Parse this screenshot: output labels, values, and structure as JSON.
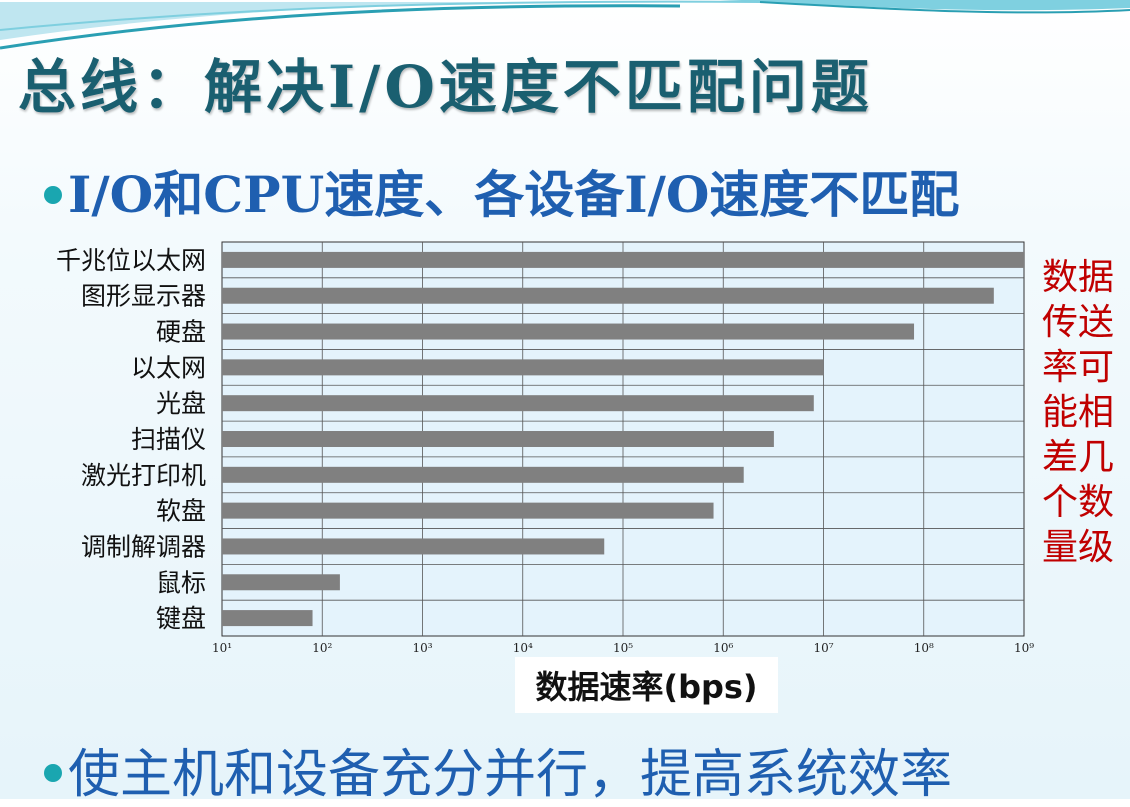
{
  "slide": {
    "title": "总线：解决I/O速度不匹配问题",
    "bullet1": "I/O和CPU速度、各设备I/O速度不匹配",
    "bullet2": "使主机和设备充分并行，提高系统效率",
    "side_note": "数据传送率可能相差几个数量级"
  },
  "colors": {
    "title": "#1a5f70",
    "bullet_text": "#1f5fb0",
    "bullet_dot": "#1aa6b0",
    "side_note": "#c00000",
    "bar": "#808080",
    "plot_bg": "#e4f3fc"
  },
  "chart_data": {
    "type": "bar",
    "orientation": "horizontal",
    "x_scale": "log",
    "xlabel": "数据速率(bps)",
    "xlim": [
      10,
      1000000000
    ],
    "x_ticks": [
      10,
      100,
      1000,
      10000,
      100000,
      1000000,
      10000000,
      100000000,
      1000000000
    ],
    "x_tick_labels": [
      "10¹",
      "10²",
      "10³",
      "10⁴",
      "10⁵",
      "10⁶",
      "10⁷",
      "10⁸",
      "10⁹"
    ],
    "grid": true,
    "categories": [
      "千兆位以太网",
      "图形显示器",
      "硬盘",
      "以太网",
      "光盘",
      "扫描仪",
      "激光打印机",
      "软盘",
      "调制解调器",
      "鼠标",
      "键盘"
    ],
    "values": [
      1000000000,
      500000000,
      80000000,
      10000000,
      8000000,
      3200000,
      1600000,
      800000,
      65000,
      150,
      80
    ]
  }
}
